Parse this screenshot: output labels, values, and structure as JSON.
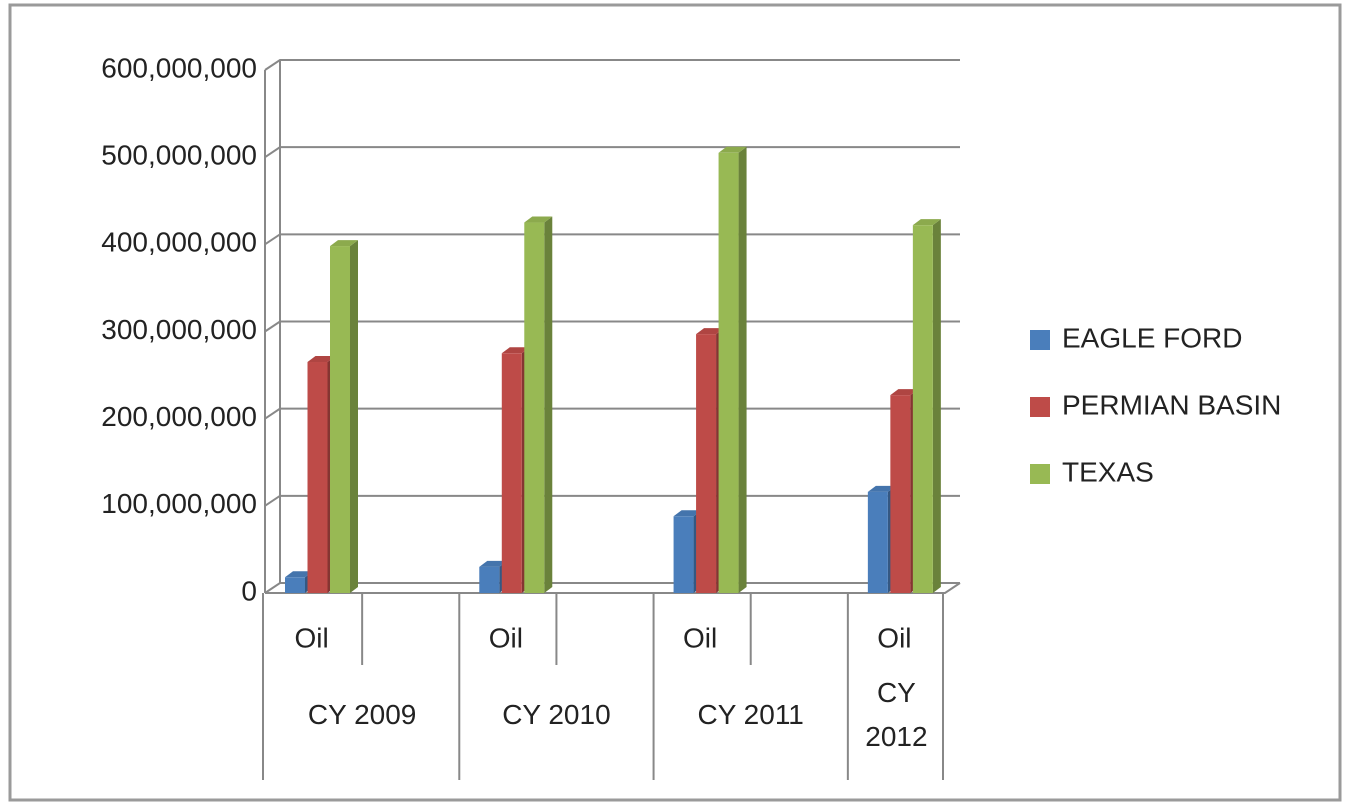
{
  "chart_data": {
    "type": "bar3d",
    "categories": [
      "Oil",
      null,
      "Oil",
      null,
      "Oil",
      null,
      "Oil"
    ],
    "groups": [
      "CY 2009",
      "CY 2010",
      "CY 2011",
      "CY 2012"
    ],
    "series": [
      {
        "name": "EAGLE FORD",
        "color": "#4a7ebb",
        "values": [
          18000000,
          null,
          30000000,
          null,
          88000000,
          null,
          116000000
        ]
      },
      {
        "name": "PERMIAN BASIN",
        "color": "#be4b48",
        "values": [
          265000000,
          null,
          275000000,
          null,
          297000000,
          null,
          227000000
        ]
      },
      {
        "name": "TEXAS",
        "color": "#98b954",
        "values": [
          398000000,
          null,
          425000000,
          null,
          505000000,
          null,
          422000000
        ]
      }
    ],
    "ylim": [
      0,
      600000000
    ],
    "yticks": [
      0,
      {
        "value": 100000000,
        "label": "100,000,000"
      },
      {
        "value": 200000000,
        "label": "200,000,000"
      },
      {
        "value": 300000000,
        "label": "300,000,000"
      },
      {
        "value": 400000000,
        "label": "400,000,000"
      },
      {
        "value": 500000000,
        "label": "500,000,000"
      },
      {
        "value": 600000000,
        "label": "600,000,000"
      }
    ],
    "grid": true,
    "legend": "right"
  }
}
